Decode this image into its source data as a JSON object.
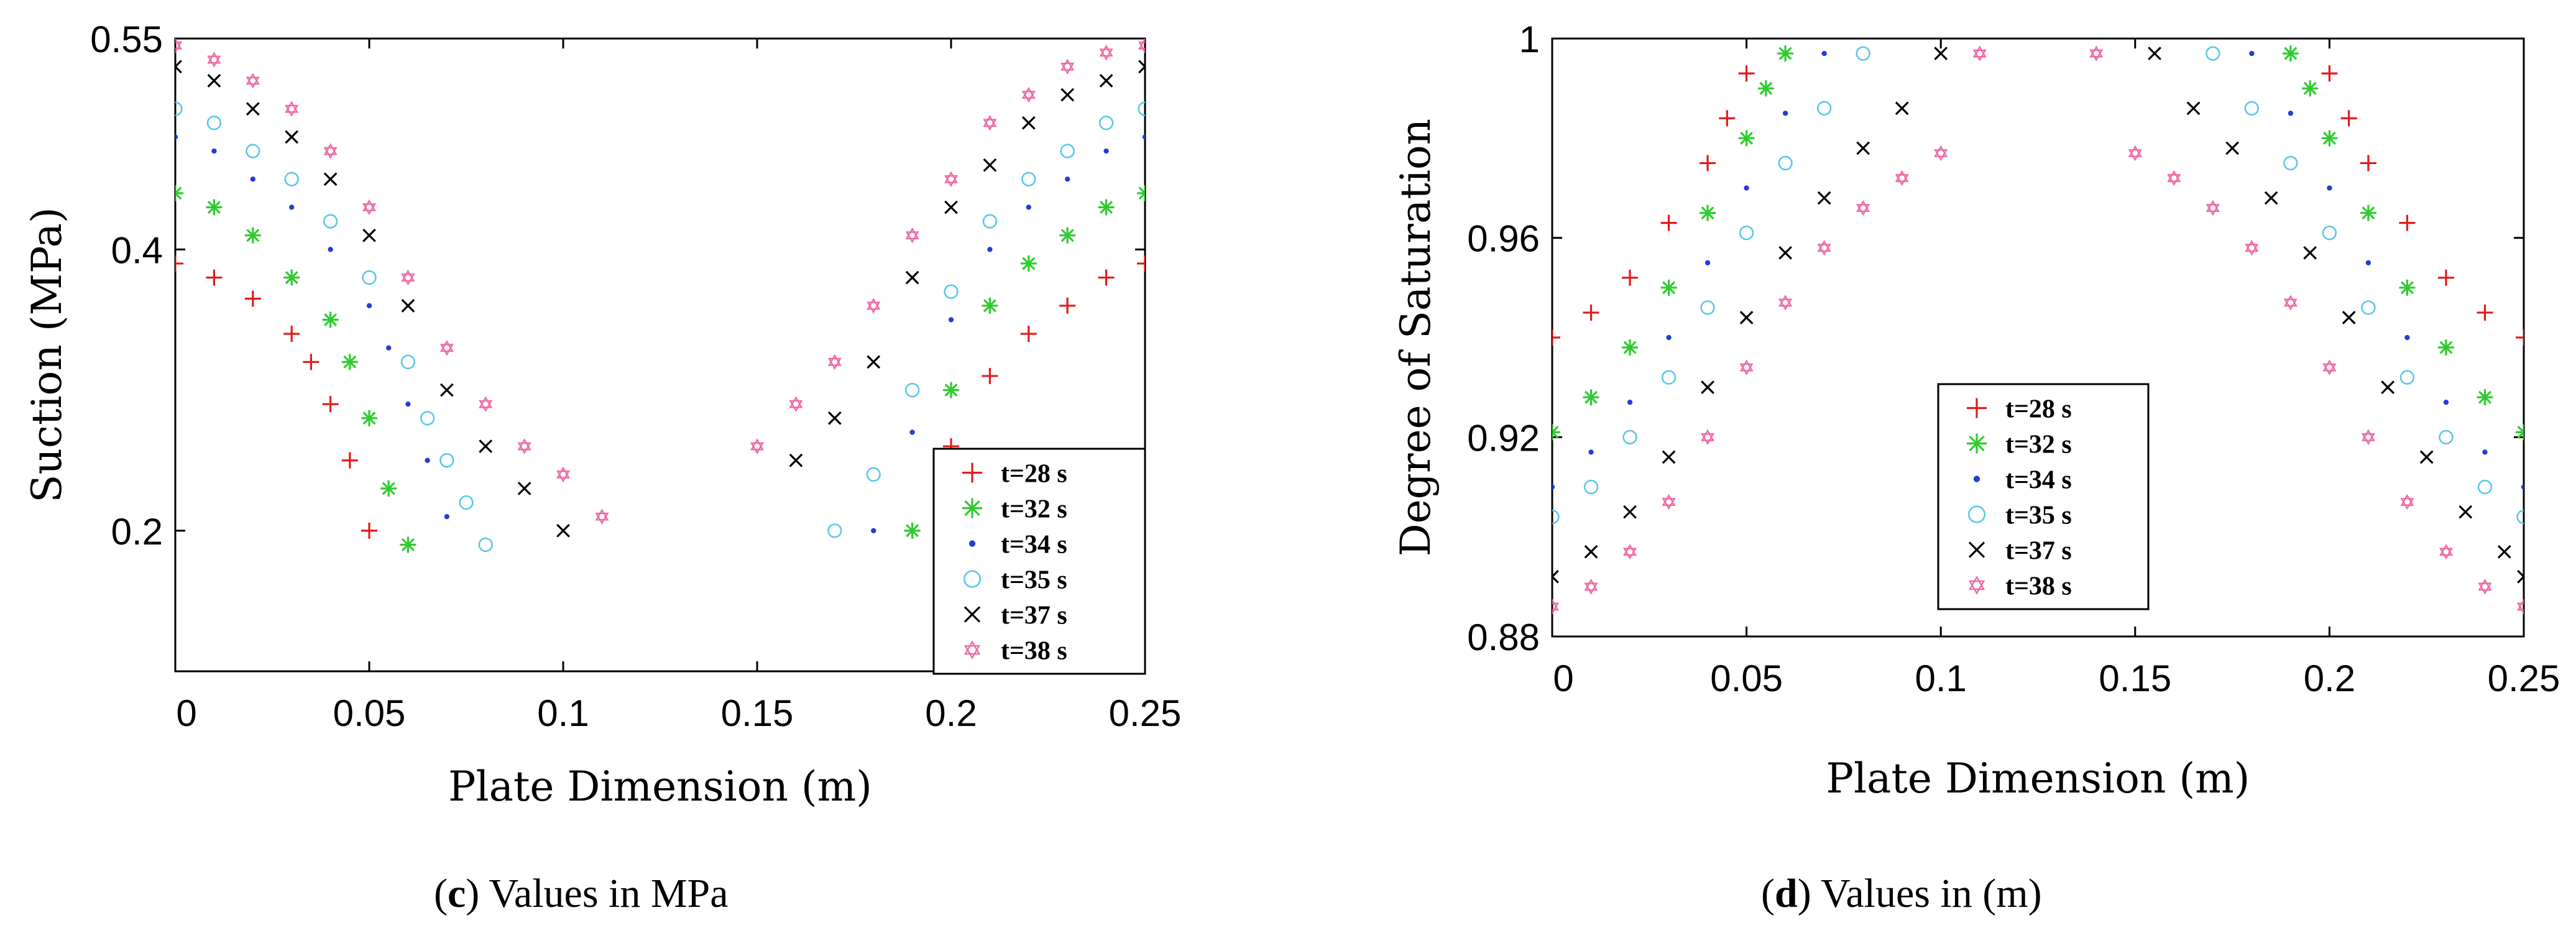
{
  "chart_data": [
    {
      "type": "scatter",
      "title": "",
      "xlabel": "Plate Dimension (m)",
      "ylabel": "Suction (MPa)",
      "xlim": [
        0,
        0.25
      ],
      "ylim": [
        0.1,
        0.55
      ],
      "x_ticks": [
        "0",
        "0.05",
        "0.1",
        "0.15",
        "0.2",
        "0.25"
      ],
      "y_ticks": [
        "0.2",
        "0.4",
        "0.55"
      ],
      "legend_position": "bottom-right",
      "caption": {
        "letter": "c",
        "text": "Values in MPa"
      },
      "series": [
        {
          "name": "t=28 s",
          "color": "#e41a1c",
          "marker": "plus",
          "left": {
            "x": [
              0,
              0.01,
              0.02,
              0.03,
              0.035,
              0.04,
              0.045,
              0.05
            ],
            "y": [
              0.39,
              0.38,
              0.365,
              0.34,
              0.32,
              0.29,
              0.25,
              0.2
            ]
          },
          "right": {
            "x": [
              0.2,
              0.21,
              0.22,
              0.23,
              0.24,
              0.25
            ],
            "y": [
              0.26,
              0.31,
              0.34,
              0.36,
              0.38,
              0.39
            ]
          }
        },
        {
          "name": "t=32 s",
          "color": "#2ecc2e",
          "marker": "asterisk",
          "left": {
            "x": [
              0,
              0.01,
              0.02,
              0.03,
              0.04,
              0.045,
              0.05,
              0.055,
              0.06
            ],
            "y": [
              0.44,
              0.43,
              0.41,
              0.38,
              0.35,
              0.32,
              0.28,
              0.23,
              0.19
            ]
          },
          "right": {
            "x": [
              0.19,
              0.2,
              0.21,
              0.22,
              0.23,
              0.24,
              0.25
            ],
            "y": [
              0.2,
              0.3,
              0.36,
              0.39,
              0.41,
              0.43,
              0.44
            ]
          }
        },
        {
          "name": "t=34 s",
          "color": "#1f3fd6",
          "marker": "dot",
          "left": {
            "x": [
              0,
              0.01,
              0.02,
              0.03,
              0.04,
              0.05,
              0.055,
              0.06,
              0.065,
              0.07
            ],
            "y": [
              0.48,
              0.47,
              0.45,
              0.43,
              0.4,
              0.36,
              0.33,
              0.29,
              0.25,
              0.21
            ]
          },
          "right": {
            "x": [
              0.18,
              0.19,
              0.2,
              0.21,
              0.22,
              0.23,
              0.24,
              0.25
            ],
            "y": [
              0.2,
              0.27,
              0.35,
              0.4,
              0.43,
              0.45,
              0.47,
              0.48
            ]
          }
        },
        {
          "name": "t=35 s",
          "color": "#5bc8ea",
          "marker": "circle",
          "left": {
            "x": [
              0,
              0.01,
              0.02,
              0.03,
              0.04,
              0.05,
              0.06,
              0.065,
              0.07,
              0.075,
              0.08
            ],
            "y": [
              0.5,
              0.49,
              0.47,
              0.45,
              0.42,
              0.38,
              0.32,
              0.28,
              0.25,
              0.22,
              0.19
            ]
          },
          "right": {
            "x": [
              0.17,
              0.18,
              0.19,
              0.2,
              0.21,
              0.22,
              0.23,
              0.24,
              0.25
            ],
            "y": [
              0.2,
              0.24,
              0.3,
              0.37,
              0.42,
              0.45,
              0.47,
              0.49,
              0.5
            ]
          }
        },
        {
          "name": "t=37 s",
          "color": "#000000",
          "marker": "cross",
          "left": {
            "x": [
              0,
              0.01,
              0.02,
              0.03,
              0.04,
              0.05,
              0.06,
              0.07,
              0.08,
              0.09,
              0.1
            ],
            "y": [
              0.53,
              0.52,
              0.5,
              0.48,
              0.45,
              0.41,
              0.36,
              0.3,
              0.26,
              0.23,
              0.2
            ]
          },
          "right": {
            "x": [
              0.16,
              0.17,
              0.18,
              0.19,
              0.2,
              0.21,
              0.22,
              0.23,
              0.24,
              0.25
            ],
            "y": [
              0.25,
              0.28,
              0.32,
              0.38,
              0.43,
              0.46,
              0.49,
              0.51,
              0.52,
              0.53
            ]
          }
        },
        {
          "name": "t=38 s",
          "color": "#ee6ba8",
          "marker": "star",
          "left": {
            "x": [
              0,
              0.01,
              0.02,
              0.03,
              0.04,
              0.05,
              0.06,
              0.07,
              0.08,
              0.09,
              0.1,
              0.11
            ],
            "y": [
              0.545,
              0.535,
              0.52,
              0.5,
              0.47,
              0.43,
              0.38,
              0.33,
              0.29,
              0.26,
              0.24,
              0.21
            ]
          },
          "right": {
            "x": [
              0.15,
              0.16,
              0.17,
              0.18,
              0.19,
              0.2,
              0.21,
              0.22,
              0.23,
              0.24,
              0.25
            ],
            "y": [
              0.26,
              0.29,
              0.32,
              0.36,
              0.41,
              0.45,
              0.49,
              0.51,
              0.53,
              0.54,
              0.545
            ]
          }
        }
      ]
    },
    {
      "type": "scatter",
      "title": "",
      "xlabel": "Plate Dimension (m)",
      "ylabel": "Degree of Saturation",
      "xlim": [
        0,
        0.25
      ],
      "ylim": [
        0.88,
        1.0
      ],
      "x_ticks": [
        "0",
        "0.05",
        "0.1",
        "0.15",
        "0.2",
        "0.25"
      ],
      "y_ticks": [
        "0.88",
        "0.92",
        "0.96",
        "1"
      ],
      "legend_position": "center",
      "caption": {
        "letter": "d",
        "text": "Values in (m)"
      },
      "series": [
        {
          "name": "t=28 s",
          "color": "#e41a1c",
          "marker": "plus",
          "left": {
            "x": [
              0,
              0.01,
              0.02,
              0.03,
              0.04,
              0.045,
              0.05
            ],
            "y": [
              0.94,
              0.945,
              0.952,
              0.963,
              0.975,
              0.984,
              0.993
            ]
          },
          "right": {
            "x": [
              0.2,
              0.205,
              0.21,
              0.22,
              0.23,
              0.24,
              0.25
            ],
            "y": [
              0.993,
              0.984,
              0.975,
              0.963,
              0.952,
              0.945,
              0.94
            ]
          }
        },
        {
          "name": "t=32 s",
          "color": "#2ecc2e",
          "marker": "asterisk",
          "left": {
            "x": [
              0,
              0.01,
              0.02,
              0.03,
              0.04,
              0.05,
              0.055,
              0.06
            ],
            "y": [
              0.921,
              0.928,
              0.938,
              0.95,
              0.965,
              0.98,
              0.99,
              0.997
            ]
          },
          "right": {
            "x": [
              0.19,
              0.195,
              0.2,
              0.21,
              0.22,
              0.23,
              0.24,
              0.25
            ],
            "y": [
              0.997,
              0.99,
              0.98,
              0.965,
              0.95,
              0.938,
              0.928,
              0.921
            ]
          }
        },
        {
          "name": "t=34 s",
          "color": "#1f3fd6",
          "marker": "dot",
          "left": {
            "x": [
              0,
              0.01,
              0.02,
              0.03,
              0.04,
              0.05,
              0.06,
              0.07
            ],
            "y": [
              0.91,
              0.917,
              0.927,
              0.94,
              0.955,
              0.97,
              0.985,
              0.997
            ]
          },
          "right": {
            "x": [
              0.18,
              0.19,
              0.2,
              0.21,
              0.22,
              0.23,
              0.24,
              0.25
            ],
            "y": [
              0.997,
              0.985,
              0.97,
              0.955,
              0.94,
              0.927,
              0.917,
              0.91
            ]
          }
        },
        {
          "name": "t=35 s",
          "color": "#5bc8ea",
          "marker": "circle",
          "left": {
            "x": [
              0,
              0.01,
              0.02,
              0.03,
              0.04,
              0.05,
              0.06,
              0.07,
              0.08
            ],
            "y": [
              0.904,
              0.91,
              0.92,
              0.932,
              0.946,
              0.961,
              0.975,
              0.986,
              0.997
            ]
          },
          "right": {
            "x": [
              0.17,
              0.18,
              0.19,
              0.2,
              0.21,
              0.22,
              0.23,
              0.24,
              0.25
            ],
            "y": [
              0.997,
              0.986,
              0.975,
              0.961,
              0.946,
              0.932,
              0.92,
              0.91,
              0.904
            ]
          }
        },
        {
          "name": "t=37 s",
          "color": "#000000",
          "marker": "cross",
          "left": {
            "x": [
              0,
              0.01,
              0.02,
              0.03,
              0.04,
              0.05,
              0.06,
              0.07,
              0.08,
              0.09,
              0.1
            ],
            "y": [
              0.892,
              0.897,
              0.905,
              0.916,
              0.93,
              0.944,
              0.957,
              0.968,
              0.978,
              0.986,
              0.997
            ]
          },
          "right": {
            "x": [
              0.155,
              0.165,
              0.175,
              0.185,
              0.195,
              0.205,
              0.215,
              0.225,
              0.235,
              0.245,
              0.25
            ],
            "y": [
              0.997,
              0.986,
              0.978,
              0.968,
              0.957,
              0.944,
              0.93,
              0.916,
              0.905,
              0.897,
              0.892
            ]
          }
        },
        {
          "name": "t=38 s",
          "color": "#ee6ba8",
          "marker": "star",
          "left": {
            "x": [
              0,
              0.01,
              0.02,
              0.03,
              0.04,
              0.05,
              0.06,
              0.07,
              0.08,
              0.09,
              0.1,
              0.11
            ],
            "y": [
              0.886,
              0.89,
              0.897,
              0.907,
              0.92,
              0.934,
              0.947,
              0.958,
              0.966,
              0.972,
              0.977,
              0.997
            ]
          },
          "right": {
            "x": [
              0.14,
              0.15,
              0.16,
              0.17,
              0.18,
              0.19,
              0.2,
              0.21,
              0.22,
              0.23,
              0.24,
              0.25
            ],
            "y": [
              0.997,
              0.977,
              0.972,
              0.966,
              0.958,
              0.947,
              0.934,
              0.92,
              0.907,
              0.897,
              0.89,
              0.886
            ]
          }
        }
      ]
    }
  ]
}
